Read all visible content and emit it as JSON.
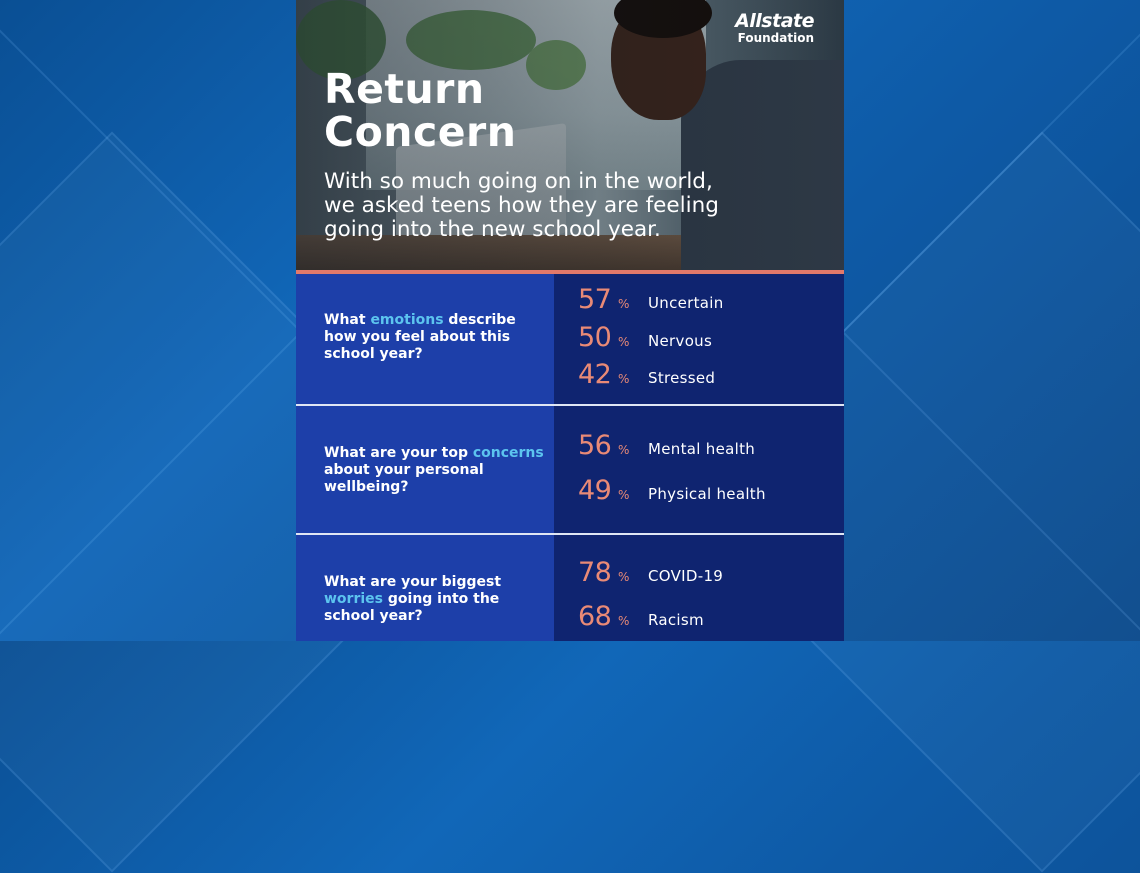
{
  "brand": {
    "name": "Allstate",
    "sub": "Foundation"
  },
  "hero": {
    "title": "Return\nConcern",
    "subtitle": "With so much going on in the world,\nwe asked teens how they are feeling\ngoing into the new school year."
  },
  "colors": {
    "question_panel": "#1d3fa9",
    "answer_panel": "#0f2470",
    "highlight": "#5cc4ef",
    "percent": "#e98a76",
    "accent_rule": "#e2796a"
  },
  "sections": [
    {
      "question_before": "What ",
      "question_highlight": "emotions",
      "question_after": " describe how you feel about this school year?",
      "stats": [
        {
          "value": "57",
          "unit": "%",
          "label": "Uncertain"
        },
        {
          "value": "50",
          "unit": "%",
          "label": "Nervous"
        },
        {
          "value": "42",
          "unit": "%",
          "label": "Stressed"
        }
      ]
    },
    {
      "question_before": "What are your top ",
      "question_highlight": "concerns",
      "question_after": " about your personal wellbeing?",
      "stats": [
        {
          "value": "56",
          "unit": "%",
          "label": "Mental health"
        },
        {
          "value": "49",
          "unit": "%",
          "label": "Physical health"
        }
      ]
    },
    {
      "question_before": "What are your biggest ",
      "question_highlight": "worries",
      "question_after": " going into the school year?",
      "stats": [
        {
          "value": "78",
          "unit": "%",
          "label": "COVID-19"
        },
        {
          "value": "68",
          "unit": "%",
          "label": "Racism"
        }
      ]
    }
  ]
}
